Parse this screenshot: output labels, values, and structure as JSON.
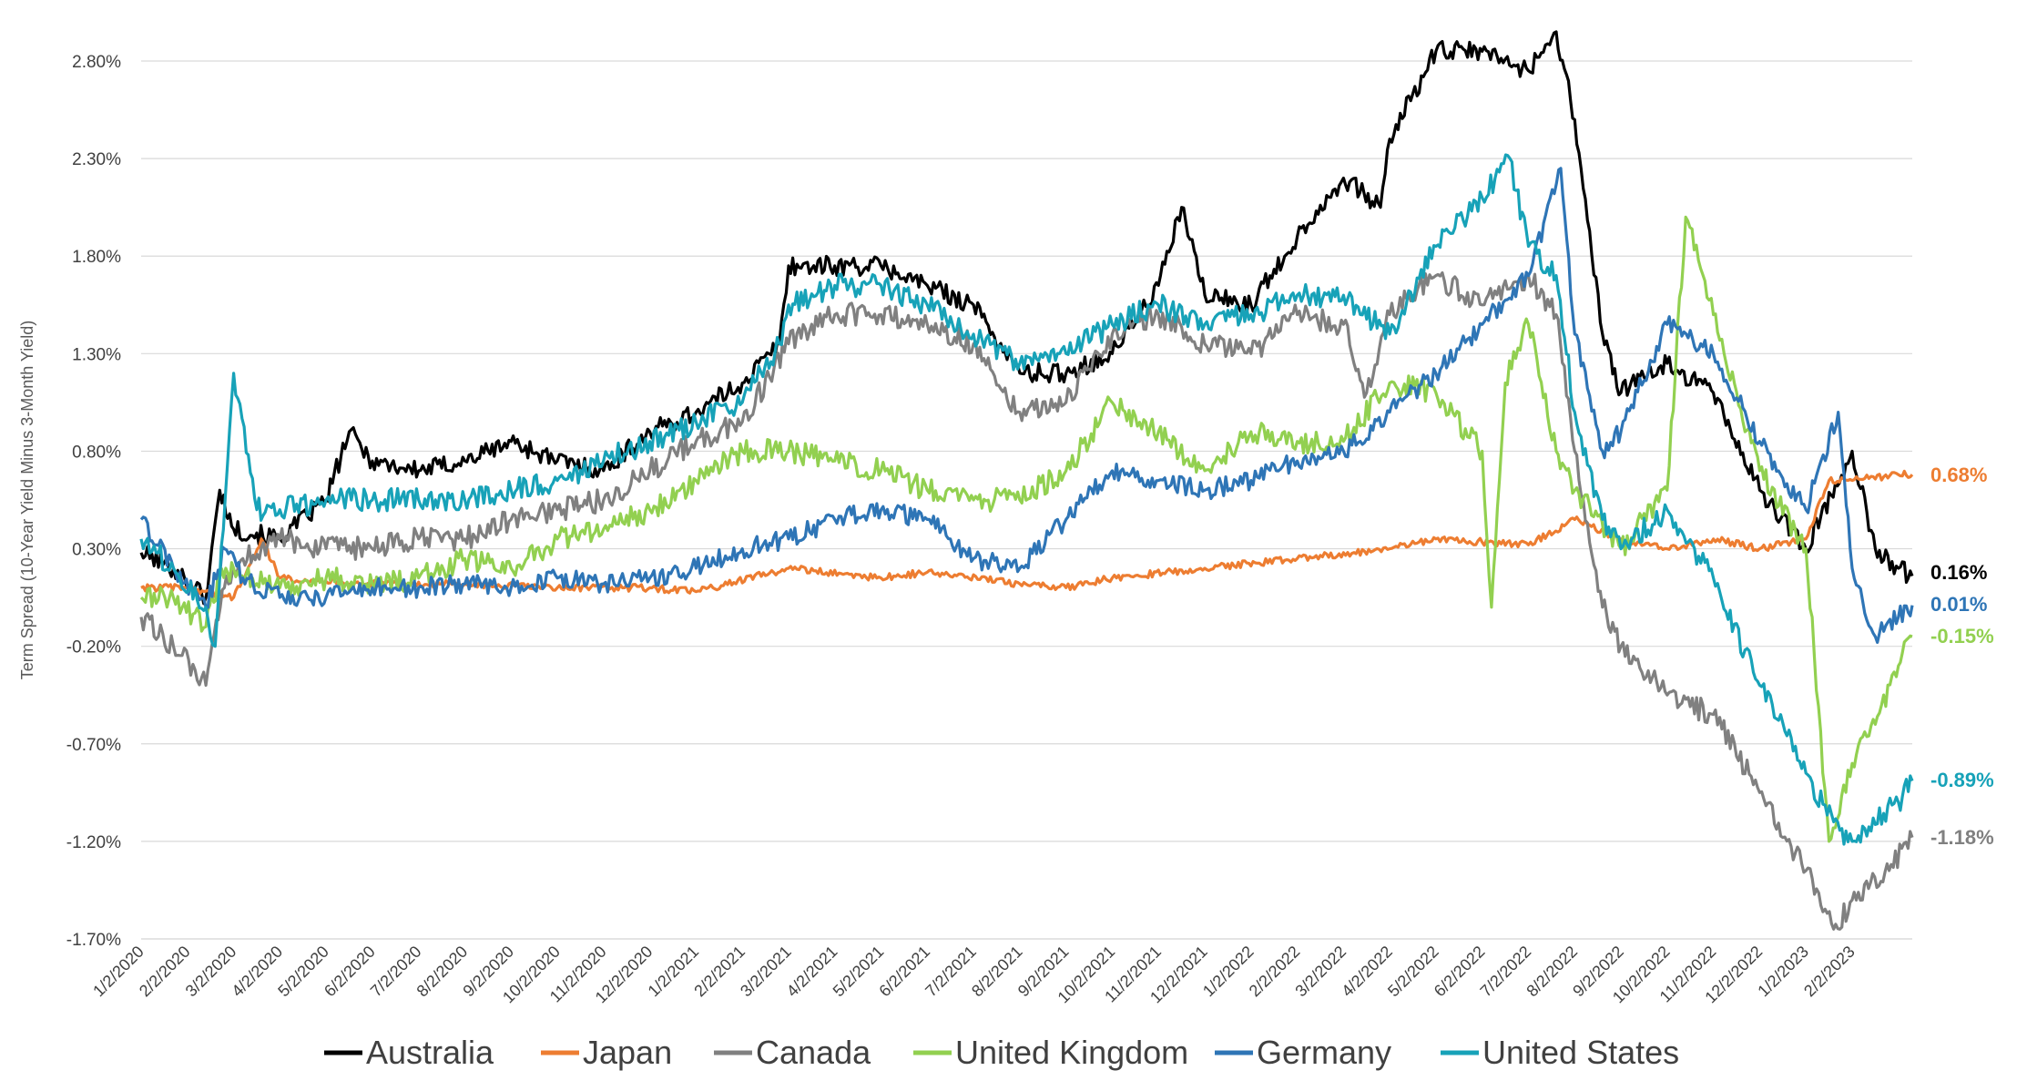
{
  "chart_data": {
    "type": "line",
    "title": "",
    "xlabel": "",
    "ylabel": "Term Spread (10-Year Yield Minus 3-Month Yield)",
    "ylim": [
      -1.7,
      2.8
    ],
    "y_unit": "%",
    "y_ticks": [
      "2.80%",
      "2.30%",
      "1.80%",
      "1.30%",
      "0.80%",
      "0.30%",
      "-0.20%",
      "-0.70%",
      "-1.20%",
      "-1.70%"
    ],
    "y_tick_values": [
      2.8,
      2.3,
      1.8,
      1.3,
      0.8,
      0.3,
      -0.2,
      -0.7,
      -1.2,
      -1.7
    ],
    "x_ticks": [
      "1/2/2020",
      "2/2/2020",
      "3/2/2020",
      "4/2/2020",
      "5/2/2020",
      "6/2/2020",
      "7/2/2020",
      "8/2/2020",
      "9/2/2020",
      "10/2/2020",
      "11/2/2020",
      "12/2/2020",
      "1/2/2021",
      "2/2/2021",
      "3/2/2021",
      "4/2/2021",
      "5/2/2021",
      "6/2/2021",
      "7/2/2021",
      "8/2/2021",
      "9/2/2021",
      "10/2/2021",
      "11/2/2021",
      "12/2/2021",
      "1/2/2022",
      "2/2/2022",
      "3/2/2022",
      "4/2/2022",
      "5/2/2022",
      "6/2/2022",
      "7/2/2022",
      "8/2/2022",
      "9/2/2022",
      "10/2/2022",
      "11/2/2022",
      "12/2/2022",
      "1/2/2023",
      "2/2/2023"
    ],
    "x_end": "3/10/2023",
    "grid": true,
    "legend_position": "bottom",
    "series": [
      {
        "name": "Australia",
        "color": "#000000",
        "end_label": "0.16%",
        "points": [
          [
            0,
            0.28
          ],
          [
            0.7,
            0.2
          ],
          [
            1.4,
            0.05
          ],
          [
            1.7,
            0.6
          ],
          [
            2,
            0.4
          ],
          [
            3,
            0.35
          ],
          [
            4,
            0.55
          ],
          [
            4.5,
            0.9
          ],
          [
            5,
            0.75
          ],
          [
            6,
            0.7
          ],
          [
            7,
            0.75
          ],
          [
            8,
            0.85
          ],
          [
            9,
            0.75
          ],
          [
            10,
            0.7
          ],
          [
            11,
            0.9
          ],
          [
            12,
            1.0
          ],
          [
            13,
            1.15
          ],
          [
            13.8,
            1.35
          ],
          [
            14,
            1.75
          ],
          [
            15,
            1.75
          ],
          [
            16,
            1.75
          ],
          [
            17,
            1.65
          ],
          [
            18,
            1.55
          ],
          [
            19,
            1.2
          ],
          [
            20,
            1.2
          ],
          [
            21,
            1.3
          ],
          [
            22,
            1.65
          ],
          [
            22.5,
            2.05
          ],
          [
            23,
            1.6
          ],
          [
            24,
            1.55
          ],
          [
            25,
            1.9
          ],
          [
            26,
            2.2
          ],
          [
            26.8,
            2.05
          ],
          [
            27,
            2.4
          ],
          [
            28,
            2.85
          ],
          [
            29,
            2.85
          ],
          [
            30,
            2.75
          ],
          [
            30.6,
            2.95
          ],
          [
            31,
            2.5
          ],
          [
            31.6,
            1.4
          ],
          [
            32,
            1.1
          ],
          [
            33,
            1.25
          ],
          [
            34,
            1.1
          ],
          [
            35,
            0.6
          ],
          [
            36,
            0.3
          ],
          [
            37,
            0.8
          ],
          [
            37.5,
            0.3
          ],
          [
            38,
            0.2
          ],
          [
            38.3,
            0.16
          ]
        ]
      },
      {
        "name": "Japan",
        "color": "#ED7D31",
        "end_label": "0.68%",
        "points": [
          [
            0,
            0.1
          ],
          [
            1,
            0.1
          ],
          [
            2,
            0.05
          ],
          [
            2.6,
            0.35
          ],
          [
            3,
            0.15
          ],
          [
            5,
            0.12
          ],
          [
            7,
            0.12
          ],
          [
            9,
            0.1
          ],
          [
            11,
            0.1
          ],
          [
            12,
            0.08
          ],
          [
            14,
            0.2
          ],
          [
            16,
            0.15
          ],
          [
            17,
            0.18
          ],
          [
            19,
            0.12
          ],
          [
            20,
            0.1
          ],
          [
            21,
            0.15
          ],
          [
            23,
            0.2
          ],
          [
            25,
            0.25
          ],
          [
            27,
            0.3
          ],
          [
            28,
            0.35
          ],
          [
            30,
            0.32
          ],
          [
            31,
            0.45
          ],
          [
            32,
            0.35
          ],
          [
            33,
            0.3
          ],
          [
            34,
            0.35
          ],
          [
            35,
            0.3
          ],
          [
            36,
            0.35
          ],
          [
            36.5,
            0.65
          ],
          [
            37,
            0.65
          ],
          [
            38,
            0.68
          ],
          [
            38.3,
            0.68
          ]
        ]
      },
      {
        "name": "Canada",
        "color": "#808080",
        "end_label": "-1.18%",
        "points": [
          [
            0,
            -0.05
          ],
          [
            0.7,
            -0.2
          ],
          [
            1.4,
            -0.4
          ],
          [
            1.8,
            0.1
          ],
          [
            2.2,
            0.25
          ],
          [
            3,
            0.35
          ],
          [
            4,
            0.3
          ],
          [
            5,
            0.3
          ],
          [
            6,
            0.35
          ],
          [
            7,
            0.35
          ],
          [
            8,
            0.45
          ],
          [
            9,
            0.5
          ],
          [
            10,
            0.55
          ],
          [
            11,
            0.7
          ],
          [
            12,
            0.85
          ],
          [
            13,
            0.95
          ],
          [
            14,
            1.35
          ],
          [
            15,
            1.5
          ],
          [
            16,
            1.5
          ],
          [
            17,
            1.45
          ],
          [
            18,
            1.35
          ],
          [
            19,
            1.0
          ],
          [
            20,
            1.05
          ],
          [
            21,
            1.4
          ],
          [
            22,
            1.5
          ],
          [
            23,
            1.35
          ],
          [
            24,
            1.3
          ],
          [
            25,
            1.5
          ],
          [
            26,
            1.45
          ],
          [
            26.5,
            1.1
          ],
          [
            27,
            1.5
          ],
          [
            28,
            1.7
          ],
          [
            29,
            1.55
          ],
          [
            30,
            1.7
          ],
          [
            30.6,
            1.5
          ],
          [
            31,
            0.8
          ],
          [
            31.6,
            0.0
          ],
          [
            32,
            -0.2
          ],
          [
            33,
            -0.45
          ],
          [
            34,
            -0.55
          ],
          [
            35,
            -0.95
          ],
          [
            36,
            -1.35
          ],
          [
            36.6,
            -1.65
          ],
          [
            37,
            -1.5
          ],
          [
            37.8,
            -1.35
          ],
          [
            38.3,
            -1.18
          ]
        ]
      },
      {
        "name": "United Kingdom",
        "color": "#92D050",
        "end_label": "-0.15%",
        "points": [
          [
            0,
            0.05
          ],
          [
            0.7,
            0.05
          ],
          [
            1.4,
            -0.1
          ],
          [
            1.7,
            0.15
          ],
          [
            2,
            0.2
          ],
          [
            3,
            0.1
          ],
          [
            4,
            0.15
          ],
          [
            5,
            0.12
          ],
          [
            6,
            0.15
          ],
          [
            7,
            0.25
          ],
          [
            8,
            0.2
          ],
          [
            9,
            0.35
          ],
          [
            10,
            0.4
          ],
          [
            11,
            0.5
          ],
          [
            12,
            0.65
          ],
          [
            13,
            0.8
          ],
          [
            14,
            0.8
          ],
          [
            15,
            0.75
          ],
          [
            16,
            0.7
          ],
          [
            17,
            0.6
          ],
          [
            18,
            0.55
          ],
          [
            19,
            0.55
          ],
          [
            20,
            0.7
          ],
          [
            21,
            1.05
          ],
          [
            22,
            0.9
          ],
          [
            23,
            0.7
          ],
          [
            24,
            0.9
          ],
          [
            25,
            0.85
          ],
          [
            26,
            0.85
          ],
          [
            27,
            1.15
          ],
          [
            28,
            1.1
          ],
          [
            29,
            0.8
          ],
          [
            29.2,
            0.0
          ],
          [
            29.5,
            1.15
          ],
          [
            30,
            1.45
          ],
          [
            30.6,
            0.8
          ],
          [
            31,
            0.6
          ],
          [
            32,
            0.3
          ],
          [
            33,
            0.6
          ],
          [
            33.4,
            2.0
          ],
          [
            34,
            1.5
          ],
          [
            35,
            0.7
          ],
          [
            36,
            0.3
          ],
          [
            36.5,
            -1.2
          ],
          [
            37,
            -0.8
          ],
          [
            37.5,
            -0.6
          ],
          [
            38,
            -0.3
          ],
          [
            38.3,
            -0.15
          ]
        ]
      },
      {
        "name": "Germany",
        "color": "#2E75B6",
        "end_label": "0.01%",
        "points": [
          [
            0,
            0.45
          ],
          [
            0.7,
            0.2
          ],
          [
            1.4,
            0.0
          ],
          [
            1.8,
            0.3
          ],
          [
            2.2,
            0.15
          ],
          [
            3,
            0.05
          ],
          [
            4,
            0.05
          ],
          [
            5,
            0.1
          ],
          [
            6,
            0.1
          ],
          [
            7,
            0.12
          ],
          [
            8,
            0.1
          ],
          [
            9,
            0.15
          ],
          [
            10,
            0.12
          ],
          [
            11,
            0.15
          ],
          [
            12,
            0.2
          ],
          [
            13,
            0.3
          ],
          [
            14,
            0.35
          ],
          [
            15,
            0.45
          ],
          [
            16,
            0.5
          ],
          [
            17,
            0.45
          ],
          [
            18,
            0.25
          ],
          [
            19,
            0.2
          ],
          [
            20,
            0.45
          ],
          [
            21,
            0.7
          ],
          [
            22,
            0.65
          ],
          [
            23,
            0.6
          ],
          [
            24,
            0.65
          ],
          [
            25,
            0.75
          ],
          [
            26,
            0.8
          ],
          [
            27,
            1.0
          ],
          [
            28,
            1.2
          ],
          [
            29,
            1.45
          ],
          [
            30,
            1.7
          ],
          [
            30.7,
            2.25
          ],
          [
            31,
            1.4
          ],
          [
            31.6,
            0.8
          ],
          [
            32,
            0.9
          ],
          [
            33,
            1.45
          ],
          [
            34,
            1.3
          ],
          [
            35,
            0.85
          ],
          [
            36,
            0.5
          ],
          [
            36.7,
            1.0
          ],
          [
            37,
            0.2
          ],
          [
            37.5,
            -0.15
          ],
          [
            38,
            -0.05
          ],
          [
            38.3,
            0.01
          ]
        ]
      },
      {
        "name": "United States",
        "color": "#17A2B8",
        "end_label": "-0.89%",
        "points": [
          [
            0,
            0.35
          ],
          [
            0.7,
            0.2
          ],
          [
            1.4,
            0.0
          ],
          [
            1.6,
            -0.2
          ],
          [
            2,
            1.2
          ],
          [
            2.5,
            0.5
          ],
          [
            3,
            0.5
          ],
          [
            4,
            0.55
          ],
          [
            5,
            0.55
          ],
          [
            6,
            0.55
          ],
          [
            7,
            0.55
          ],
          [
            8,
            0.6
          ],
          [
            9,
            0.65
          ],
          [
            10,
            0.75
          ],
          [
            11,
            0.85
          ],
          [
            12,
            0.95
          ],
          [
            13,
            1.05
          ],
          [
            13.8,
            1.35
          ],
          [
            14,
            1.55
          ],
          [
            15,
            1.65
          ],
          [
            16,
            1.65
          ],
          [
            17,
            1.55
          ],
          [
            18,
            1.4
          ],
          [
            19,
            1.25
          ],
          [
            20,
            1.3
          ],
          [
            21,
            1.45
          ],
          [
            22,
            1.55
          ],
          [
            23,
            1.45
          ],
          [
            24,
            1.5
          ],
          [
            25,
            1.6
          ],
          [
            26,
            1.6
          ],
          [
            27,
            1.4
          ],
          [
            28,
            1.85
          ],
          [
            29,
            2.1
          ],
          [
            29.6,
            2.3
          ],
          [
            30,
            1.85
          ],
          [
            30.6,
            1.7
          ],
          [
            31,
            1.0
          ],
          [
            31.6,
            0.45
          ],
          [
            32,
            0.3
          ],
          [
            33,
            0.5
          ],
          [
            34,
            0.15
          ],
          [
            35,
            -0.4
          ],
          [
            36,
            -0.85
          ],
          [
            36.6,
            -1.1
          ],
          [
            37,
            -1.2
          ],
          [
            38,
            -1.0
          ],
          [
            38.3,
            -0.89
          ]
        ]
      }
    ]
  }
}
